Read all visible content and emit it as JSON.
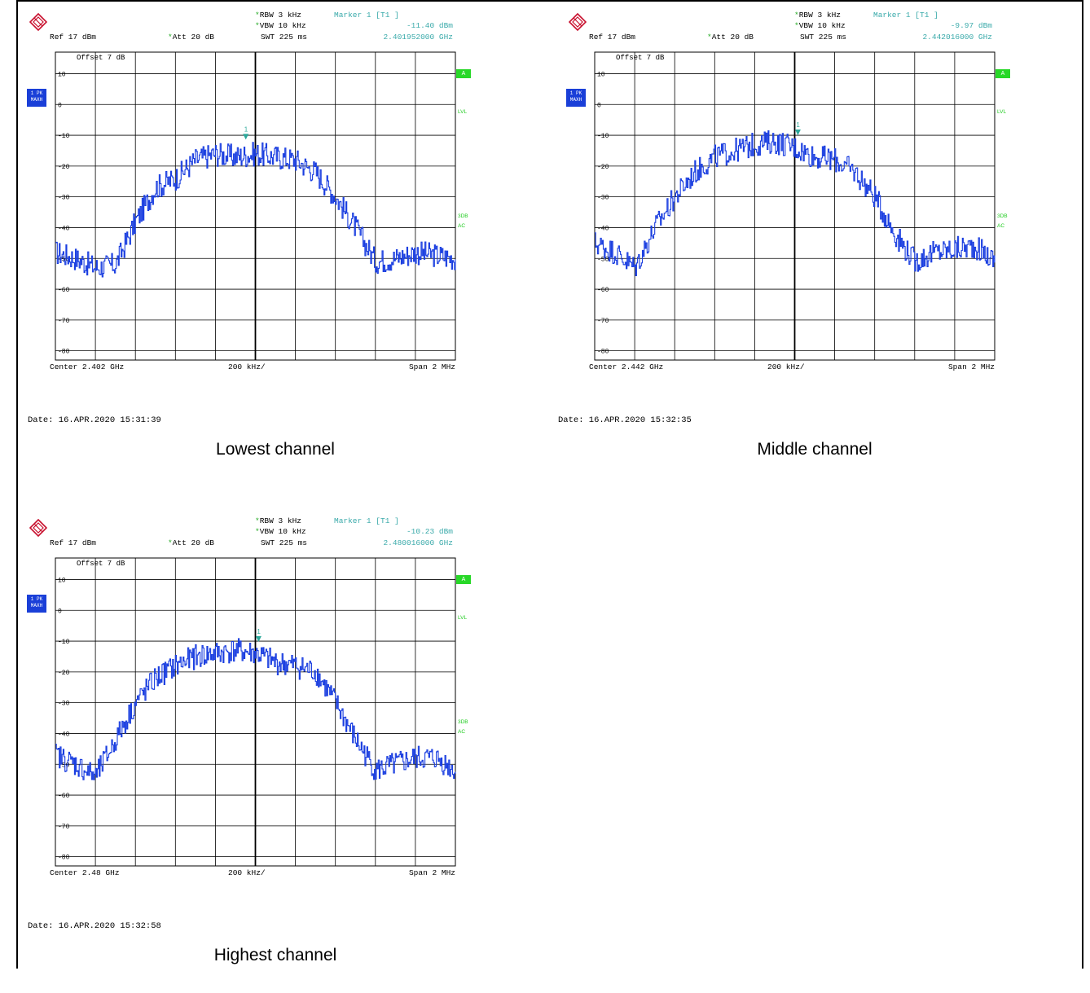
{
  "colors": {
    "trace": "#1a3ee0",
    "grid": "#000000",
    "marker": "#2aa89a",
    "header_info": "#3aaaaa",
    "status_green": "#28d828",
    "label_blue": "#1a3fd8"
  },
  "panels": [
    {
      "caption": "Lowest channel",
      "date": "Date: 16.APR.2020  15:31:39",
      "header": {
        "rbw": "RBW 3 kHz",
        "vbw": "VBW 10 kHz",
        "att": "Att  20 dB",
        "swt": "SWT 225 ms",
        "ref": "Ref  17 dBm",
        "marker_title": "Marker 1 [T1 ]",
        "marker_level": "-11.40 dBm",
        "marker_freq": "2.401952000 GHz"
      },
      "offset": "Offset  7 dB",
      "footer": {
        "center": "Center 2.402 GHz",
        "div": "200 kHz/",
        "span": "Span 2 MHz"
      },
      "side": {
        "trace_label_1": "1 PK",
        "trace_label_2": "MAXH",
        "mode_a": "A",
        "lvl": "LVL",
        "db3": "3DB",
        "ac": "AC"
      },
      "marker_label": "1"
    },
    {
      "caption": "Middle channel",
      "date": "Date: 16.APR.2020  15:32:35",
      "header": {
        "rbw": "RBW 3 kHz",
        "vbw": "VBW 10 kHz",
        "att": "Att  20 dB",
        "swt": "SWT 225 ms",
        "ref": "Ref  17 dBm",
        "marker_title": "Marker 1 [T1 ]",
        "marker_level": "-9.97 dBm",
        "marker_freq": "2.442016000 GHz"
      },
      "offset": "Offset  7 dB",
      "footer": {
        "center": "Center 2.442 GHz",
        "div": "200 kHz/",
        "span": "Span 2 MHz"
      },
      "side": {
        "trace_label_1": "1 PK",
        "trace_label_2": "MAXH",
        "mode_a": "A",
        "lvl": "LVL",
        "db3": "3DB",
        "ac": "AC"
      },
      "marker_label": "1"
    },
    {
      "caption": "Highest channel",
      "date": "Date: 16.APR.2020  15:32:58",
      "header": {
        "rbw": "RBW 3 kHz",
        "vbw": "VBW 10 kHz",
        "att": "Att  20 dB",
        "swt": "SWT 225 ms",
        "ref": "Ref  17 dBm",
        "marker_title": "Marker 1 [T1 ]",
        "marker_level": "-10.23 dBm",
        "marker_freq": "2.480016000 GHz"
      },
      "offset": "Offset  7 dB",
      "footer": {
        "center": "Center 2.48 GHz",
        "div": "200 kHz/",
        "span": "Span 2 MHz"
      },
      "side": {
        "trace_label_1": "1 PK",
        "trace_label_2": "MAXH",
        "mode_a": "A",
        "lvl": "LVL",
        "db3": "3DB",
        "ac": "AC"
      },
      "marker_label": "1"
    }
  ],
  "chart_data": [
    {
      "type": "line",
      "x": [
        -1.0,
        -0.9,
        -0.8,
        -0.7,
        -0.6,
        -0.5,
        -0.4,
        -0.3,
        -0.2,
        -0.1,
        0.0,
        0.1,
        0.2,
        0.3,
        0.4,
        0.5,
        0.6,
        0.7,
        0.8,
        0.9,
        1.0
      ],
      "series": [
        {
          "values": [
            -48,
            -50,
            -53,
            -52,
            -38,
            -27,
            -24,
            -18,
            -16,
            -17,
            -16,
            -17,
            -18,
            -22,
            -30,
            -40,
            -51,
            -50,
            -48,
            -49,
            -50
          ]
        }
      ],
      "marker": {
        "x": -0.048,
        "y": -11.4
      },
      "y_ticks": [
        10,
        0,
        -10,
        -20,
        -30,
        -40,
        -50,
        -60,
        -70,
        -80
      ],
      "ylim": [
        -83,
        17
      ],
      "xlim": [
        -1,
        1
      ],
      "grid": true
    },
    {
      "type": "line",
      "x": [
        -1.0,
        -0.9,
        -0.8,
        -0.7,
        -0.6,
        -0.5,
        -0.4,
        -0.3,
        -0.2,
        -0.1,
        0.0,
        0.1,
        0.2,
        0.3,
        0.4,
        0.5,
        0.6,
        0.7,
        0.8,
        0.9,
        1.0
      ],
      "series": [
        {
          "values": [
            -45,
            -48,
            -53,
            -40,
            -30,
            -22,
            -17,
            -15,
            -13,
            -12,
            -14,
            -17,
            -18,
            -22,
            -30,
            -42,
            -51,
            -48,
            -47,
            -46,
            -51
          ]
        }
      ],
      "marker": {
        "x": 0.016,
        "y": -9.97
      },
      "y_ticks": [
        10,
        0,
        -10,
        -20,
        -30,
        -40,
        -50,
        -60,
        -70,
        -80
      ],
      "ylim": [
        -83,
        17
      ],
      "xlim": [
        -1,
        1
      ],
      "grid": true
    },
    {
      "type": "line",
      "x": [
        -1.0,
        -0.9,
        -0.8,
        -0.7,
        -0.6,
        -0.5,
        -0.4,
        -0.3,
        -0.2,
        -0.1,
        0.0,
        0.1,
        0.2,
        0.3,
        0.4,
        0.5,
        0.6,
        0.7,
        0.8,
        0.9,
        1.0
      ],
      "series": [
        {
          "values": [
            -47,
            -50,
            -54,
            -42,
            -30,
            -22,
            -18,
            -15,
            -14,
            -13,
            -14,
            -17,
            -18,
            -20,
            -30,
            -42,
            -52,
            -50,
            -48,
            -48,
            -52
          ]
        }
      ],
      "marker": {
        "x": 0.016,
        "y": -10.23
      },
      "y_ticks": [
        10,
        0,
        -10,
        -20,
        -30,
        -40,
        -50,
        -60,
        -70,
        -80
      ],
      "ylim": [
        -83,
        17
      ],
      "xlim": [
        -1,
        1
      ],
      "grid": true
    }
  ]
}
